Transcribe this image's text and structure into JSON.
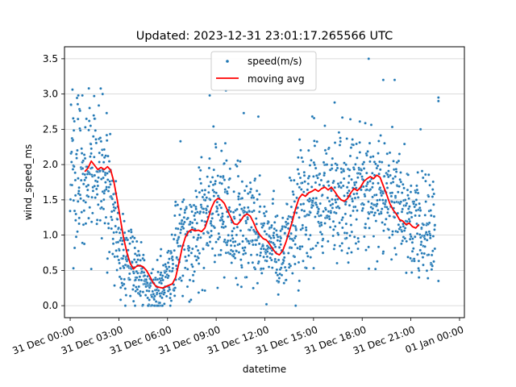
{
  "chart_data": {
    "type": "scatter",
    "title": "Updated: 2023-12-31 23:01:17.265566 UTC",
    "xlabel": "datetime",
    "ylabel": "wind_speed_ms",
    "x_unit": "hours since 31 Dec 00:00",
    "xlim": [
      -0.35,
      24.3
    ],
    "ylim": [
      -0.17,
      3.67
    ],
    "x_ticks": [
      {
        "value": 0,
        "label": "31 Dec 00:00"
      },
      {
        "value": 3,
        "label": "31 Dec 03:00"
      },
      {
        "value": 6,
        "label": "31 Dec 06:00"
      },
      {
        "value": 9,
        "label": "31 Dec 09:00"
      },
      {
        "value": 12,
        "label": "31 Dec 12:00"
      },
      {
        "value": 15,
        "label": "31 Dec 15:00"
      },
      {
        "value": 18,
        "label": "31 Dec 18:00"
      },
      {
        "value": 21,
        "label": "31 Dec 21:00"
      },
      {
        "value": 24,
        "label": "01 Jan 00:00"
      }
    ],
    "y_ticks": [
      0.0,
      0.5,
      1.0,
      1.5,
      2.0,
      2.5,
      3.0,
      3.5
    ],
    "y_tick_labels": [
      "0.0",
      "0.5",
      "1.0",
      "1.5",
      "2.0",
      "2.5",
      "3.0",
      "3.5"
    ],
    "grid": "horizontal",
    "legend_position": "top-center",
    "legend": [
      {
        "name": "speed(m/s)",
        "kind": "scatter",
        "color": "#1f77b4"
      },
      {
        "name": "moving avg",
        "kind": "line",
        "color": "#ff0000"
      }
    ],
    "scatter_envelope": [
      {
        "x": 0.0,
        "mean": 1.8,
        "spread": 0.75
      },
      {
        "x": 1.0,
        "mean": 1.95,
        "spread": 0.7
      },
      {
        "x": 2.0,
        "mean": 1.8,
        "spread": 0.7
      },
      {
        "x": 2.6,
        "mean": 1.3,
        "spread": 0.55
      },
      {
        "x": 3.2,
        "mean": 0.7,
        "spread": 0.45
      },
      {
        "x": 4.0,
        "mean": 0.5,
        "spread": 0.35
      },
      {
        "x": 5.0,
        "mean": 0.25,
        "spread": 0.22
      },
      {
        "x": 5.8,
        "mean": 0.3,
        "spread": 0.3
      },
      {
        "x": 6.5,
        "mean": 0.75,
        "spread": 0.5
      },
      {
        "x": 7.5,
        "mean": 1.05,
        "spread": 0.6
      },
      {
        "x": 9.0,
        "mean": 1.45,
        "spread": 0.7
      },
      {
        "x": 10.0,
        "mean": 1.2,
        "spread": 0.6
      },
      {
        "x": 11.0,
        "mean": 1.2,
        "spread": 0.55
      },
      {
        "x": 12.0,
        "mean": 0.9,
        "spread": 0.5
      },
      {
        "x": 13.0,
        "mean": 0.75,
        "spread": 0.45
      },
      {
        "x": 14.0,
        "mean": 1.3,
        "spread": 0.6
      },
      {
        "x": 15.0,
        "mean": 1.6,
        "spread": 0.7
      },
      {
        "x": 16.5,
        "mean": 1.55,
        "spread": 0.7
      },
      {
        "x": 18.0,
        "mean": 1.7,
        "spread": 0.7
      },
      {
        "x": 19.5,
        "mean": 1.6,
        "spread": 0.65
      },
      {
        "x": 20.5,
        "mean": 1.25,
        "spread": 0.6
      },
      {
        "x": 22.5,
        "mean": 1.1,
        "spread": 0.55
      }
    ],
    "scatter_points": [
      {
        "x": 0.05,
        "y": 2.85
      },
      {
        "x": 0.2,
        "y": 0.53
      },
      {
        "x": 0.5,
        "y": 2.98
      },
      {
        "x": 0.75,
        "y": 2.98
      },
      {
        "x": 1.15,
        "y": 3.08
      },
      {
        "x": 1.5,
        "y": 2.65
      },
      {
        "x": 2.0,
        "y": 3.0
      },
      {
        "x": 2.25,
        "y": 2.73
      },
      {
        "x": 1.3,
        "y": 0.52
      },
      {
        "x": 3.4,
        "y": 0.0
      },
      {
        "x": 4.0,
        "y": 0.0
      },
      {
        "x": 4.8,
        "y": 0.0
      },
      {
        "x": 5.4,
        "y": 0.0
      },
      {
        "x": 5.6,
        "y": 0.8
      },
      {
        "x": 6.8,
        "y": 2.33
      },
      {
        "x": 8.6,
        "y": 2.98
      },
      {
        "x": 9.6,
        "y": 3.05
      },
      {
        "x": 10.7,
        "y": 2.73
      },
      {
        "x": 11.6,
        "y": 2.68
      },
      {
        "x": 12.1,
        "y": 0.02
      },
      {
        "x": 13.9,
        "y": 0.0
      },
      {
        "x": 15.7,
        "y": 2.55
      },
      {
        "x": 16.3,
        "y": 2.88
      },
      {
        "x": 18.4,
        "y": 3.5
      },
      {
        "x": 19.3,
        "y": 3.2
      },
      {
        "x": 20.0,
        "y": 3.2
      },
      {
        "x": 21.6,
        "y": 2.5
      },
      {
        "x": 22.7,
        "y": 2.9
      },
      {
        "x": 22.7,
        "y": 2.95
      },
      {
        "x": 22.7,
        "y": 0.35
      },
      {
        "x": 21.5,
        "y": 0.4
      },
      {
        "x": 9.5,
        "y": 0.4
      },
      {
        "x": 14.7,
        "y": 2.2
      }
    ],
    "moving_avg": [
      {
        "x": 0.9,
        "y": 1.9
      },
      {
        "x": 1.1,
        "y": 1.95
      },
      {
        "x": 1.3,
        "y": 2.05
      },
      {
        "x": 1.5,
        "y": 1.99
      },
      {
        "x": 1.7,
        "y": 1.93
      },
      {
        "x": 1.9,
        "y": 1.96
      },
      {
        "x": 2.1,
        "y": 1.93
      },
      {
        "x": 2.3,
        "y": 1.97
      },
      {
        "x": 2.5,
        "y": 1.92
      },
      {
        "x": 2.7,
        "y": 1.75
      },
      {
        "x": 2.9,
        "y": 1.5
      },
      {
        "x": 3.1,
        "y": 1.22
      },
      {
        "x": 3.3,
        "y": 0.95
      },
      {
        "x": 3.5,
        "y": 0.75
      },
      {
        "x": 3.7,
        "y": 0.6
      },
      {
        "x": 3.9,
        "y": 0.52
      },
      {
        "x": 4.1,
        "y": 0.56
      },
      {
        "x": 4.3,
        "y": 0.57
      },
      {
        "x": 4.5,
        "y": 0.55
      },
      {
        "x": 4.7,
        "y": 0.5
      },
      {
        "x": 4.9,
        "y": 0.42
      },
      {
        "x": 5.1,
        "y": 0.33
      },
      {
        "x": 5.3,
        "y": 0.27
      },
      {
        "x": 5.5,
        "y": 0.26
      },
      {
        "x": 5.7,
        "y": 0.25
      },
      {
        "x": 5.9,
        "y": 0.27
      },
      {
        "x": 6.1,
        "y": 0.29
      },
      {
        "x": 6.3,
        "y": 0.31
      },
      {
        "x": 6.5,
        "y": 0.4
      },
      {
        "x": 6.7,
        "y": 0.6
      },
      {
        "x": 6.9,
        "y": 0.82
      },
      {
        "x": 7.1,
        "y": 0.97
      },
      {
        "x": 7.3,
        "y": 1.05
      },
      {
        "x": 7.5,
        "y": 1.08
      },
      {
        "x": 7.7,
        "y": 1.06
      },
      {
        "x": 7.9,
        "y": 1.07
      },
      {
        "x": 8.1,
        "y": 1.05
      },
      {
        "x": 8.3,
        "y": 1.1
      },
      {
        "x": 8.5,
        "y": 1.23
      },
      {
        "x": 8.7,
        "y": 1.38
      },
      {
        "x": 8.9,
        "y": 1.48
      },
      {
        "x": 9.1,
        "y": 1.52
      },
      {
        "x": 9.3,
        "y": 1.5
      },
      {
        "x": 9.5,
        "y": 1.45
      },
      {
        "x": 9.7,
        "y": 1.35
      },
      {
        "x": 9.9,
        "y": 1.25
      },
      {
        "x": 10.1,
        "y": 1.16
      },
      {
        "x": 10.3,
        "y": 1.15
      },
      {
        "x": 10.5,
        "y": 1.2
      },
      {
        "x": 10.7,
        "y": 1.27
      },
      {
        "x": 10.9,
        "y": 1.3
      },
      {
        "x": 11.1,
        "y": 1.27
      },
      {
        "x": 11.3,
        "y": 1.18
      },
      {
        "x": 11.5,
        "y": 1.07
      },
      {
        "x": 11.7,
        "y": 1.0
      },
      {
        "x": 11.9,
        "y": 0.95
      },
      {
        "x": 12.1,
        "y": 0.93
      },
      {
        "x": 12.3,
        "y": 0.87
      },
      {
        "x": 12.5,
        "y": 0.8
      },
      {
        "x": 12.7,
        "y": 0.74
      },
      {
        "x": 12.9,
        "y": 0.72
      },
      {
        "x": 13.1,
        "y": 0.78
      },
      {
        "x": 13.3,
        "y": 0.9
      },
      {
        "x": 13.5,
        "y": 1.05
      },
      {
        "x": 13.7,
        "y": 1.2
      },
      {
        "x": 13.9,
        "y": 1.38
      },
      {
        "x": 14.1,
        "y": 1.52
      },
      {
        "x": 14.3,
        "y": 1.58
      },
      {
        "x": 14.5,
        "y": 1.55
      },
      {
        "x": 14.7,
        "y": 1.6
      },
      {
        "x": 14.9,
        "y": 1.62
      },
      {
        "x": 15.1,
        "y": 1.65
      },
      {
        "x": 15.3,
        "y": 1.62
      },
      {
        "x": 15.5,
        "y": 1.66
      },
      {
        "x": 15.7,
        "y": 1.68
      },
      {
        "x": 15.9,
        "y": 1.64
      },
      {
        "x": 16.1,
        "y": 1.68
      },
      {
        "x": 16.3,
        "y": 1.62
      },
      {
        "x": 16.5,
        "y": 1.55
      },
      {
        "x": 16.7,
        "y": 1.5
      },
      {
        "x": 16.9,
        "y": 1.48
      },
      {
        "x": 17.1,
        "y": 1.52
      },
      {
        "x": 17.3,
        "y": 1.6
      },
      {
        "x": 17.5,
        "y": 1.66
      },
      {
        "x": 17.7,
        "y": 1.63
      },
      {
        "x": 17.9,
        "y": 1.68
      },
      {
        "x": 18.1,
        "y": 1.76
      },
      {
        "x": 18.3,
        "y": 1.8
      },
      {
        "x": 18.5,
        "y": 1.83
      },
      {
        "x": 18.7,
        "y": 1.8
      },
      {
        "x": 18.9,
        "y": 1.85
      },
      {
        "x": 19.1,
        "y": 1.82
      },
      {
        "x": 19.3,
        "y": 1.7
      },
      {
        "x": 19.5,
        "y": 1.58
      },
      {
        "x": 19.7,
        "y": 1.45
      },
      {
        "x": 19.9,
        "y": 1.36
      },
      {
        "x": 20.1,
        "y": 1.3
      },
      {
        "x": 20.3,
        "y": 1.22
      },
      {
        "x": 20.5,
        "y": 1.2
      },
      {
        "x": 20.7,
        "y": 1.15
      },
      {
        "x": 20.9,
        "y": 1.17
      },
      {
        "x": 21.1,
        "y": 1.12
      },
      {
        "x": 21.3,
        "y": 1.1
      },
      {
        "x": 21.5,
        "y": 1.15
      }
    ],
    "colors": {
      "scatter": "#1f77b4",
      "line": "#ff0000",
      "grid": "#d0d0d0",
      "axis": "#000000"
    }
  }
}
